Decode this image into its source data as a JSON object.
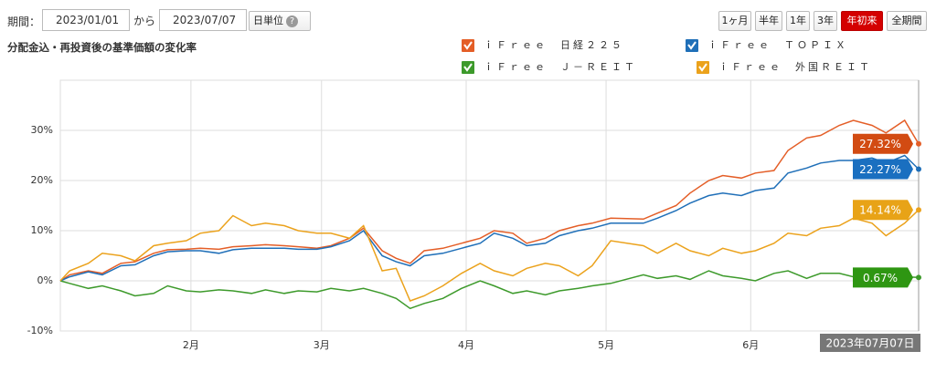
{
  "controls": {
    "period_label": "期間：",
    "start": "2023/01/01",
    "sep": "から",
    "end": "2023/07/07",
    "unit": "日単位",
    "buttons": [
      "1ヶ月",
      "半年",
      "1年",
      "3年",
      "年初来",
      "全期間"
    ],
    "active": "年初来"
  },
  "chart_data": {
    "type": "line",
    "title": "分配金込・再投資後の基準価額の変化率",
    "tooltip_date": "2023年07月07日",
    "x": [
      "2023-01-04",
      "2023-01-06",
      "2023-01-10",
      "2023-01-13",
      "2023-01-17",
      "2023-01-20",
      "2023-01-24",
      "2023-01-27",
      "2023-01-31",
      "2023-02-03",
      "2023-02-07",
      "2023-02-10",
      "2023-02-14",
      "2023-02-17",
      "2023-02-21",
      "2023-02-24",
      "2023-02-28",
      "2023-03-03",
      "2023-03-07",
      "2023-03-10",
      "2023-03-14",
      "2023-03-17",
      "2023-03-20",
      "2023-03-23",
      "2023-03-27",
      "2023-03-31",
      "2023-04-04",
      "2023-04-07",
      "2023-04-11",
      "2023-04-14",
      "2023-04-18",
      "2023-04-21",
      "2023-04-25",
      "2023-04-28",
      "2023-05-02",
      "2023-05-09",
      "2023-05-12",
      "2023-05-16",
      "2023-05-19",
      "2023-05-23",
      "2023-05-26",
      "2023-05-30",
      "2023-06-02",
      "2023-06-06",
      "2023-06-09",
      "2023-06-13",
      "2023-06-16",
      "2023-06-20",
      "2023-06-23",
      "2023-06-27",
      "2023-06-30",
      "2023-07-04",
      "2023-07-07"
    ],
    "xlim": [
      "2023-01-04",
      "2023-07-07"
    ],
    "xticks": [
      {
        "value": "2023-02-01",
        "label": "2月"
      },
      {
        "value": "2023-03-01",
        "label": "3月"
      },
      {
        "value": "2023-04-01",
        "label": "4月"
      },
      {
        "value": "2023-05-01",
        "label": "5月"
      },
      {
        "value": "2023-06-01",
        "label": "6月"
      }
    ],
    "ylim": [
      -10,
      40
    ],
    "yticks": [
      {
        "value": -10,
        "label": "-10%"
      },
      {
        "value": 0,
        "label": "0%"
      },
      {
        "value": 10,
        "label": "10%"
      },
      {
        "value": 20,
        "label": "20%"
      },
      {
        "value": 30,
        "label": "30%"
      }
    ],
    "grid": true,
    "series": [
      {
        "name": "ｉＦｒｅｅ　日経２２５",
        "color": "#e45e27",
        "label_color": "#d24b12",
        "values": [
          0,
          1.2,
          2.0,
          1.5,
          3.5,
          3.8,
          5.5,
          6.2,
          6.3,
          6.5,
          6.3,
          6.8,
          7.0,
          7.2,
          7.0,
          6.8,
          6.5,
          7.0,
          8.5,
          10.5,
          6.0,
          4.5,
          3.5,
          6.0,
          6.5,
          7.5,
          8.5,
          10.0,
          9.5,
          7.5,
          8.5,
          10.0,
          11.0,
          11.5,
          12.5,
          12.3,
          13.5,
          15.0,
          17.5,
          20.0,
          21.0,
          20.5,
          21.5,
          22.0,
          26.0,
          28.5,
          29.0,
          31.0,
          32.0,
          31.0,
          29.5,
          32.0,
          27.32
        ],
        "value_labels": [
          null,
          null,
          null,
          null,
          null,
          null,
          null,
          null,
          null,
          null,
          null,
          null,
          null,
          null,
          null,
          null,
          null,
          null,
          null,
          null,
          null,
          null,
          null,
          null,
          null,
          null,
          null,
          null,
          null,
          null,
          null,
          null,
          null,
          null,
          null,
          null,
          null,
          null,
          null,
          null,
          null,
          null,
          null,
          null,
          null,
          null,
          null,
          null,
          null,
          null,
          null,
          null,
          "27.32%"
        ]
      },
      {
        "name": "ｉＦｒｅｅ　ＴＯＰＩＸ",
        "color": "#1f6fb8",
        "label_color": "#1a6fc0",
        "values": [
          0,
          0.8,
          1.8,
          1.2,
          3.0,
          3.2,
          5.0,
          5.8,
          6.0,
          6.0,
          5.5,
          6.2,
          6.5,
          6.5,
          6.5,
          6.3,
          6.3,
          6.8,
          8.0,
          10.0,
          5.0,
          3.8,
          3.0,
          5.0,
          5.5,
          6.5,
          7.5,
          9.5,
          8.5,
          7.0,
          7.5,
          9.0,
          10.0,
          10.5,
          11.5,
          11.5,
          12.5,
          14.0,
          15.5,
          17.0,
          17.5,
          17.0,
          18.0,
          18.5,
          21.5,
          22.5,
          23.5,
          24.0,
          24.0,
          24.5,
          23.5,
          25.0,
          22.27
        ],
        "value_labels": [
          null,
          null,
          null,
          null,
          null,
          null,
          null,
          null,
          null,
          null,
          null,
          null,
          null,
          null,
          null,
          null,
          null,
          null,
          null,
          null,
          null,
          null,
          null,
          null,
          null,
          null,
          null,
          null,
          null,
          null,
          null,
          null,
          null,
          null,
          null,
          null,
          null,
          null,
          null,
          null,
          null,
          null,
          null,
          null,
          null,
          null,
          null,
          null,
          null,
          null,
          null,
          null,
          "22.27%"
        ]
      },
      {
        "name": "ｉＦｒｅｅ　Ｊ－ＲＥＩＴ",
        "color": "#3d9a2b",
        "label_color": "#2e9612",
        "values": [
          0,
          -0.5,
          -1.5,
          -1.0,
          -2.0,
          -3.0,
          -2.5,
          -1.0,
          -2.0,
          -2.2,
          -1.8,
          -2.0,
          -2.5,
          -1.8,
          -2.5,
          -2.0,
          -2.2,
          -1.5,
          -2.0,
          -1.5,
          -2.5,
          -3.5,
          -5.5,
          -4.5,
          -3.5,
          -1.5,
          0,
          -1.0,
          -2.5,
          -2.0,
          -2.8,
          -2.0,
          -1.5,
          -1.0,
          -0.5,
          1.2,
          0.5,
          1.0,
          0.3,
          2.0,
          1.0,
          0.5,
          0,
          1.5,
          2.0,
          0.5,
          1.5,
          1.5,
          0.8,
          1.0,
          0.5,
          0.8,
          0.67
        ],
        "value_labels": [
          null,
          null,
          null,
          null,
          null,
          null,
          null,
          null,
          null,
          null,
          null,
          null,
          null,
          null,
          null,
          null,
          null,
          null,
          null,
          null,
          null,
          null,
          null,
          null,
          null,
          null,
          null,
          null,
          null,
          null,
          null,
          null,
          null,
          null,
          null,
          null,
          null,
          null,
          null,
          null,
          null,
          null,
          null,
          null,
          null,
          null,
          null,
          null,
          null,
          null,
          null,
          null,
          "0.67%"
        ]
      },
      {
        "name": "ｉＦｒｅｅ　外国ＲＥＩＴ",
        "color": "#eba21c",
        "label_color": "#e8a317",
        "values": [
          0,
          2.0,
          3.5,
          5.5,
          5.0,
          4.0,
          7.0,
          7.5,
          8.0,
          9.5,
          10.0,
          13.0,
          11.0,
          11.5,
          11.0,
          10.0,
          9.5,
          9.5,
          8.5,
          11.0,
          2.0,
          2.5,
          -4.0,
          -3.0,
          -1.0,
          1.5,
          3.5,
          2.0,
          1.0,
          2.5,
          3.5,
          3.0,
          1.0,
          3.0,
          8.0,
          7.0,
          5.5,
          7.5,
          6.0,
          5.0,
          6.5,
          5.5,
          6.0,
          7.5,
          9.5,
          9.0,
          10.5,
          11.0,
          12.5,
          11.5,
          9.0,
          11.5,
          14.14
        ],
        "value_labels": [
          null,
          null,
          null,
          null,
          null,
          null,
          null,
          null,
          null,
          null,
          null,
          null,
          null,
          null,
          null,
          null,
          null,
          null,
          null,
          null,
          null,
          null,
          null,
          null,
          null,
          null,
          null,
          null,
          null,
          null,
          null,
          null,
          null,
          null,
          null,
          null,
          null,
          null,
          null,
          null,
          null,
          null,
          null,
          null,
          null,
          null,
          null,
          null,
          null,
          null,
          null,
          null,
          "14.14%"
        ]
      }
    ]
  }
}
